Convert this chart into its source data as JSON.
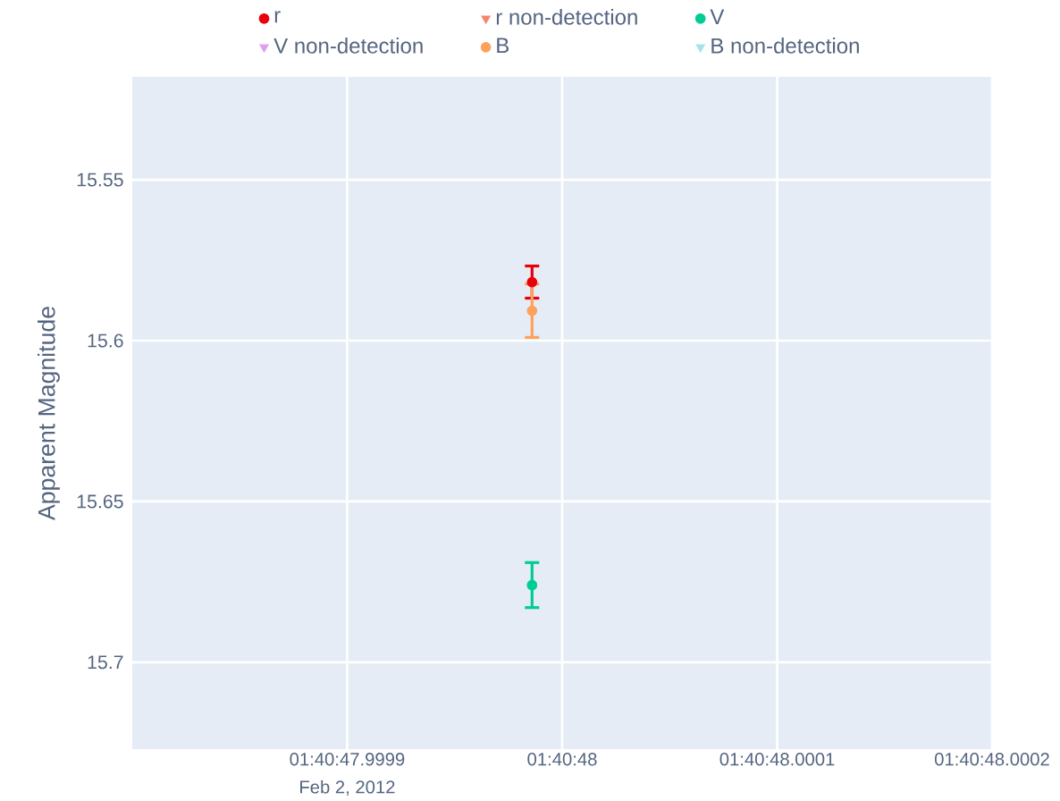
{
  "chart_data": {
    "type": "scatter",
    "ylabel": "Apparent Magnitude",
    "x": [
      "2012-02-02T01:40:47.999986"
    ],
    "series": [
      {
        "name": "r",
        "color": "#e8000b",
        "marker": "circle",
        "values": [
          15.5818
        ],
        "errors": [
          0.005
        ]
      },
      {
        "name": "r non-detection",
        "color": "#f4846a",
        "marker": "triangle",
        "values": [
          null
        ]
      },
      {
        "name": "V",
        "color": "#00cc96",
        "marker": "circle",
        "values": [
          15.676
        ],
        "errors": [
          0.007
        ]
      },
      {
        "name": "V non-detection",
        "color": "#dda0ec",
        "marker": "triangle",
        "values": [
          null
        ]
      },
      {
        "name": "B",
        "color": "#ffa15a",
        "marker": "circle",
        "values": [
          15.5907
        ],
        "errors": [
          0.0083
        ]
      },
      {
        "name": "B non-detection",
        "color": "#a6e3e8",
        "marker": "triangle",
        "values": [
          null
        ]
      }
    ],
    "xlim": [
      "2012-02-02T01:40:47.999800",
      "2012-02-02T01:40:48.000200"
    ],
    "xticks": [
      {
        "value": "2012-02-02T01:40:47.999900",
        "label": "01:40:47.9999"
      },
      {
        "value": "2012-02-02T01:40:48",
        "label": "01:40:48"
      },
      {
        "value": "2012-02-02T01:40:48.000100",
        "label": "01:40:48.0001"
      },
      {
        "value": "2012-02-02T01:40:48.000200",
        "label": "01:40:48.0002"
      }
    ],
    "ylim": [
      15.727,
      15.518
    ],
    "yticks": [
      15.55,
      15.6,
      15.65,
      15.7
    ],
    "annotations": [
      "Feb 2, 2012"
    ],
    "grid": true,
    "legend": "top"
  }
}
